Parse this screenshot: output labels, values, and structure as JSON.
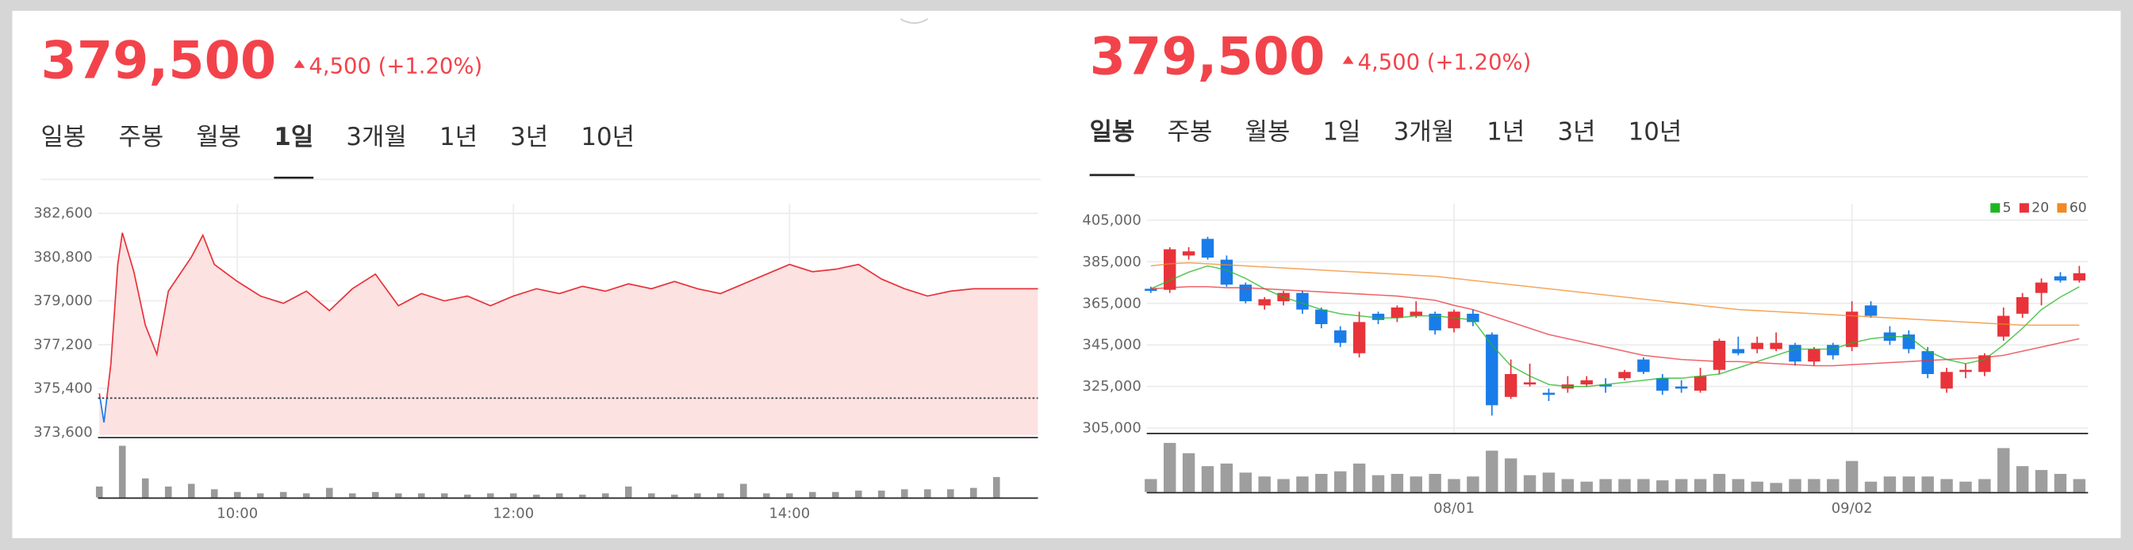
{
  "panels": [
    {
      "price": "379,500",
      "change": "4,500 (+1.20%)",
      "tabs": [
        "일봉",
        "주봉",
        "월봉",
        "1일",
        "3개월",
        "1년",
        "3년",
        "10년"
      ],
      "active_tab": 3
    },
    {
      "price": "379,500",
      "change": "4,500 (+1.20%)",
      "tabs": [
        "일봉",
        "주봉",
        "월봉",
        "1일",
        "3개월",
        "1년",
        "3년",
        "10년"
      ],
      "active_tab": 0
    }
  ],
  "chart_data": [
    {
      "type": "line",
      "color": "#e8333a",
      "below_color": "#1a7ce8",
      "fill_color": "#fde2e2",
      "reference_value": 375000,
      "x": [
        "09:00",
        "09:02",
        "09:05",
        "09:08",
        "09:10",
        "09:15",
        "09:20",
        "09:25",
        "09:30",
        "09:40",
        "09:45",
        "09:50",
        "10:00",
        "10:10",
        "10:20",
        "10:30",
        "10:40",
        "10:50",
        "11:00",
        "11:10",
        "11:20",
        "11:30",
        "11:40",
        "11:50",
        "12:00",
        "12:10",
        "12:20",
        "12:30",
        "12:40",
        "12:50",
        "13:00",
        "13:10",
        "13:20",
        "13:30",
        "13:40",
        "14:00",
        "14:10",
        "14:20",
        "14:30",
        "14:40",
        "14:50",
        "15:00",
        "15:10",
        "15:20",
        "15:30",
        "15:48"
      ],
      "values": [
        375200,
        374000,
        376400,
        380500,
        381800,
        380200,
        378000,
        376800,
        379400,
        380800,
        381700,
        380500,
        379800,
        379200,
        378900,
        379400,
        378600,
        379500,
        380100,
        378800,
        379300,
        379000,
        379200,
        378800,
        379200,
        379500,
        379300,
        379600,
        379400,
        379700,
        379500,
        379800,
        379500,
        379300,
        379700,
        380500,
        380200,
        380300,
        380500,
        379900,
        379500,
        379200,
        379400,
        379500,
        379500,
        379500
      ],
      "xlim": [
        "09:00",
        "15:48"
      ],
      "xticks": [
        "10:00",
        "12:00",
        "14:00"
      ],
      "ylim": [
        373600,
        382600
      ],
      "yticks": [
        {
          "value": 382600,
          "label": "382,600"
        },
        {
          "value": 380800,
          "label": "380,800"
        },
        {
          "value": 379000,
          "label": "379,000"
        },
        {
          "value": 377200,
          "label": "377,200"
        },
        {
          "value": 375400,
          "label": "375,400"
        },
        {
          "value": 373600,
          "label": "373,600"
        }
      ],
      "grid": true
    },
    {
      "type": "bar",
      "color": "#9a9a9a",
      "x": [
        "09:00",
        "09:10",
        "09:20",
        "09:30",
        "09:40",
        "09:50",
        "10:00",
        "10:10",
        "10:20",
        "10:30",
        "10:40",
        "10:50",
        "11:00",
        "11:10",
        "11:20",
        "11:30",
        "11:40",
        "11:50",
        "12:00",
        "12:10",
        "12:20",
        "12:30",
        "12:40",
        "12:50",
        "13:00",
        "13:10",
        "13:20",
        "13:30",
        "13:40",
        "13:50",
        "14:00",
        "14:10",
        "14:20",
        "14:30",
        "14:40",
        "14:50",
        "15:00",
        "15:10",
        "15:20",
        "15:30"
      ],
      "values": [
        8,
        38,
        14,
        8,
        10,
        6,
        4,
        3,
        4,
        3,
        7,
        3,
        4,
        3,
        3,
        3,
        2,
        3,
        3,
        2,
        3,
        2,
        3,
        8,
        3,
        2,
        3,
        3,
        10,
        3,
        3,
        4,
        4,
        5,
        5,
        6,
        6,
        6,
        7,
        15
      ],
      "ylim": [
        0,
        40
      ]
    },
    {
      "type": "candlestick",
      "up_color": "#e8333a",
      "down_color": "#1a7ce8",
      "categories": [
        null,
        null,
        null,
        null,
        null,
        null,
        null,
        null,
        null,
        null,
        null,
        null,
        null,
        null,
        null,
        null,
        "08/01",
        null,
        null,
        null,
        null,
        null,
        null,
        null,
        null,
        null,
        null,
        null,
        null,
        null,
        null,
        null,
        null,
        null,
        null,
        null,
        null,
        "09/02",
        null,
        null,
        null,
        null,
        null,
        null,
        null,
        null,
        null,
        null,
        null,
        null
      ],
      "open": [
        372000,
        371500,
        388000,
        396000,
        386000,
        374000,
        364000,
        366000,
        370000,
        362000,
        352000,
        341000,
        360000,
        358000,
        359000,
        360000,
        353000,
        360000,
        350000,
        320000,
        326000,
        322000,
        324000,
        326000,
        326000,
        329000,
        338000,
        329000,
        325000,
        323000,
        333000,
        343000,
        343000,
        343000,
        345000,
        337000,
        345000,
        344000,
        364000,
        351000,
        350000,
        342000,
        324000,
        332000,
        332000,
        349000,
        360000,
        370000,
        378000,
        376000
      ],
      "high": [
        373000,
        392000,
        392000,
        397000,
        388000,
        375000,
        368000,
        371000,
        371000,
        363000,
        354000,
        361000,
        361000,
        364000,
        366000,
        361000,
        362000,
        362000,
        351000,
        338000,
        336000,
        324000,
        330000,
        330000,
        329000,
        333000,
        339000,
        331000,
        328000,
        334000,
        348000,
        349000,
        349000,
        351000,
        346000,
        344000,
        346000,
        366000,
        366000,
        354000,
        352000,
        344000,
        334000,
        336000,
        341000,
        363000,
        370000,
        377000,
        380000,
        383000
      ],
      "low": [
        370000,
        370000,
        386000,
        386000,
        373000,
        365000,
        362000,
        364000,
        360000,
        353000,
        344000,
        339000,
        355000,
        356000,
        358000,
        350000,
        351000,
        354000,
        311000,
        319000,
        325000,
        318000,
        322000,
        325000,
        322000,
        328000,
        331000,
        321000,
        322000,
        322000,
        331000,
        340000,
        341000,
        342000,
        335000,
        335000,
        338000,
        342000,
        358000,
        345000,
        341000,
        329000,
        322000,
        329000,
        330000,
        347000,
        358000,
        364000,
        375000,
        375000
      ],
      "close": [
        371000,
        391000,
        390000,
        387000,
        374000,
        366000,
        367000,
        370000,
        362000,
        355000,
        346000,
        356000,
        357000,
        363000,
        361000,
        352000,
        361000,
        356000,
        316000,
        331000,
        327000,
        321000,
        326000,
        328000,
        325000,
        332000,
        332000,
        323000,
        324000,
        330000,
        347000,
        341000,
        346000,
        346000,
        337000,
        343000,
        340000,
        361000,
        359000,
        347000,
        343000,
        331000,
        332000,
        333000,
        340000,
        359000,
        368000,
        375000,
        376000,
        379500
      ],
      "series": [
        {
          "name": "5",
          "color": "#21b521",
          "values": [
            372000,
            376000,
            380000,
            383000,
            381000,
            377000,
            372000,
            368000,
            365000,
            362000,
            360000,
            359000,
            358000,
            358000,
            359000,
            359000,
            358000,
            357000,
            345000,
            335000,
            330000,
            326000,
            325000,
            325000,
            326000,
            327000,
            328000,
            329000,
            329000,
            330000,
            331000,
            334000,
            337000,
            340000,
            343000,
            343000,
            343000,
            346000,
            348000,
            349000,
            349000,
            342000,
            338000,
            336000,
            338000,
            345000,
            353000,
            362000,
            368000,
            373000
          ]
        },
        {
          "name": "20",
          "color": "#e8333a",
          "values": [
            372000,
            372500,
            373000,
            373000,
            372500,
            372500,
            372000,
            371500,
            371000,
            370500,
            370000,
            369500,
            369000,
            368500,
            367500,
            366500,
            364000,
            362000,
            359000,
            356000,
            353000,
            350000,
            348000,
            346000,
            344000,
            342000,
            340000,
            339000,
            338000,
            337500,
            337000,
            337000,
            336500,
            336000,
            335500,
            335000,
            335000,
            335500,
            336000,
            336500,
            337000,
            337500,
            338000,
            338500,
            339000,
            340000,
            342000,
            344000,
            346000,
            348000
          ]
        },
        {
          "name": "60",
          "color": "#f08a24",
          "values": [
            383000,
            384000,
            384500,
            384000,
            383500,
            383000,
            382500,
            382000,
            381500,
            381000,
            380500,
            380000,
            379500,
            379000,
            378500,
            378000,
            377000,
            376000,
            375000,
            374000,
            373000,
            372000,
            371000,
            370000,
            369000,
            368000,
            367000,
            366000,
            365000,
            364000,
            363000,
            362000,
            361500,
            361000,
            360500,
            360000,
            359500,
            359000,
            358500,
            358000,
            357500,
            357000,
            356500,
            356000,
            355500,
            355000,
            354500,
            354500,
            354500,
            354500
          ]
        }
      ],
      "ylim": [
        305000,
        405000
      ],
      "yticks": [
        {
          "value": 405000,
          "label": "405,000"
        },
        {
          "value": 385000,
          "label": "385,000"
        },
        {
          "value": 365000,
          "label": "365,000"
        },
        {
          "value": 345000,
          "label": "345,000"
        },
        {
          "value": 325000,
          "label": "325,000"
        },
        {
          "value": 305000,
          "label": "305,000"
        }
      ],
      "grid": true,
      "legend": "top-right"
    },
    {
      "type": "bar",
      "color": "#9e9e9e",
      "values": [
        10,
        38,
        30,
        20,
        22,
        15,
        12,
        10,
        12,
        14,
        16,
        22,
        13,
        14,
        12,
        14,
        10,
        12,
        32,
        26,
        13,
        15,
        10,
        8,
        10,
        10,
        10,
        9,
        10,
        10,
        14,
        10,
        8,
        7,
        10,
        10,
        10,
        24,
        8,
        12,
        12,
        12,
        10,
        8,
        10,
        34,
        20,
        17,
        14,
        10
      ],
      "ylim": [
        0,
        40
      ]
    }
  ]
}
